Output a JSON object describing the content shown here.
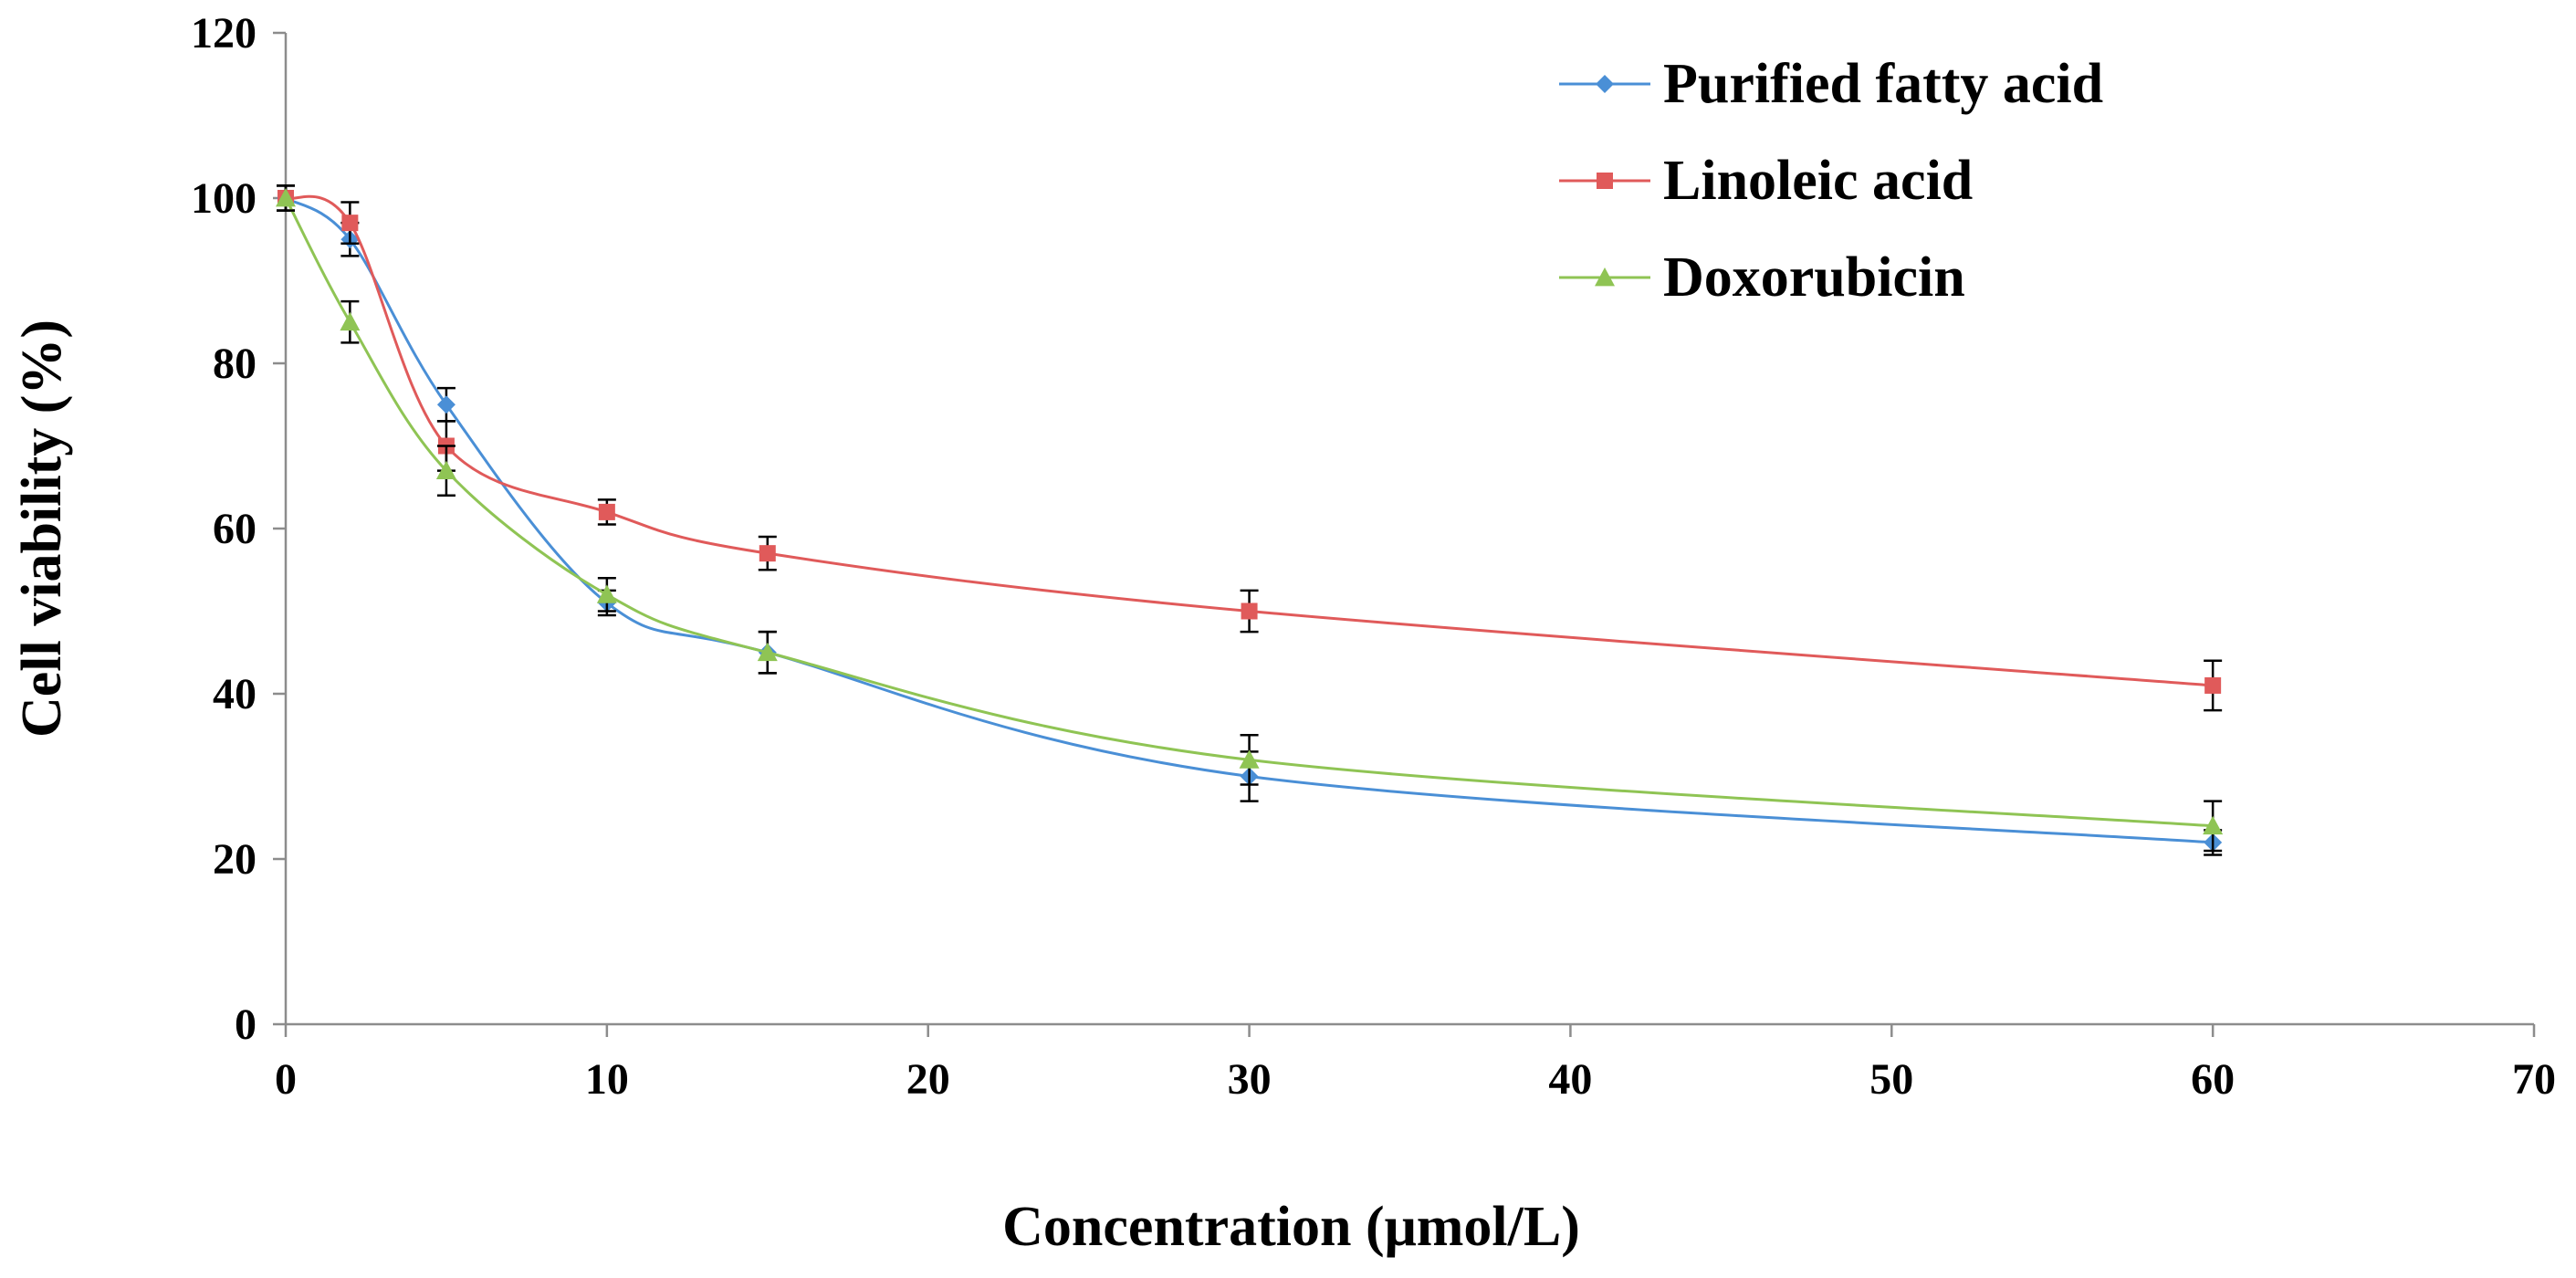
{
  "chart_data": {
    "type": "line",
    "title": "",
    "xlabel": "Concentration (μmol/L)",
    "ylabel": "Cell viability (%)",
    "xlim": [
      0,
      70
    ],
    "ylim": [
      0,
      120
    ],
    "xticks": [
      0,
      10,
      20,
      30,
      40,
      50,
      60,
      70
    ],
    "yticks": [
      0,
      20,
      40,
      60,
      80,
      100,
      120
    ],
    "grid": false,
    "legend_position": "top-right",
    "x": [
      0,
      2,
      5,
      10,
      15,
      30,
      60
    ],
    "series": [
      {
        "name": "Purified fatty acid",
        "color": "#4a8fd6",
        "marker": "diamond",
        "values": [
          100,
          95,
          75,
          51,
          45,
          30,
          22
        ],
        "errors": [
          1.5,
          2,
          2,
          1.5,
          2.5,
          3,
          1.5
        ]
      },
      {
        "name": "Linoleic acid",
        "color": "#e05a5a",
        "marker": "square",
        "values": [
          100,
          97,
          70,
          62,
          57,
          50,
          41
        ],
        "errors": [
          1.5,
          2.5,
          3,
          1.5,
          2,
          2.5,
          3
        ]
      },
      {
        "name": "Doxorubicin",
        "color": "#8fc454",
        "marker": "triangle",
        "values": [
          100,
          85,
          67,
          52,
          45,
          32,
          24
        ],
        "errors": [
          1.5,
          2.5,
          3,
          2,
          2.5,
          3,
          3
        ]
      }
    ]
  }
}
